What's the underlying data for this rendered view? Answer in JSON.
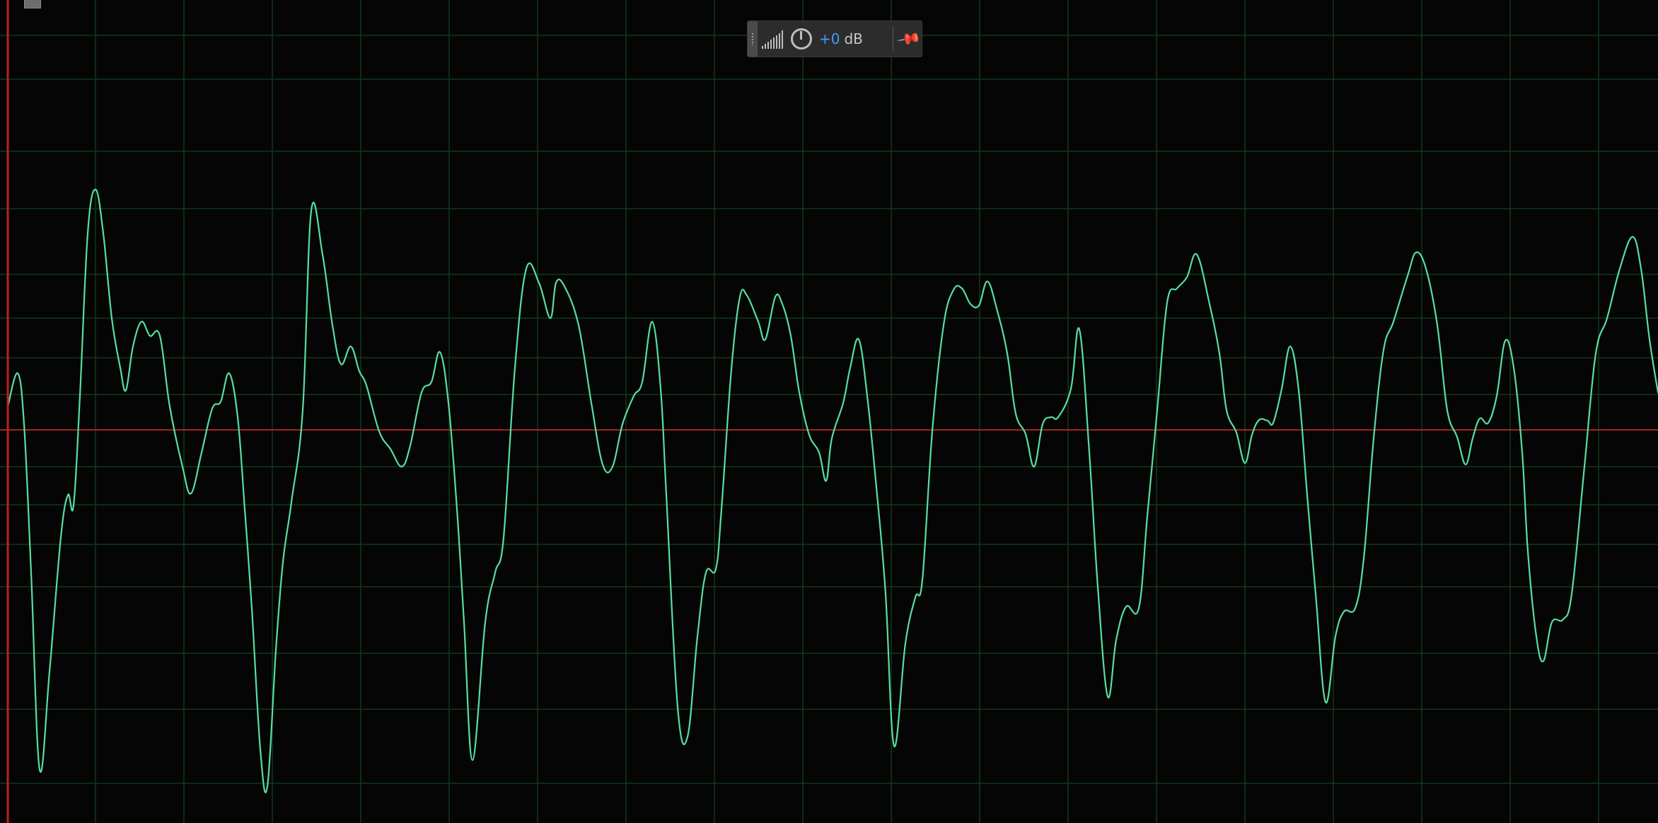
{
  "colors": {
    "background": "#050505",
    "grid": "#12381b",
    "waveform": "#56dfa0",
    "playhead": "#c01f1f",
    "centerline": "#a2261d",
    "hud_value": "#3f9cff"
  },
  "hud": {
    "value": "+0",
    "unit": "dB",
    "icons": {
      "grip": "grip-dots-icon",
      "meter": "level-meter-icon",
      "knob": "volume-knob-icon",
      "pin": "pin-icon"
    }
  },
  "corner_button": {
    "icon": "line-tool-icon"
  }
}
